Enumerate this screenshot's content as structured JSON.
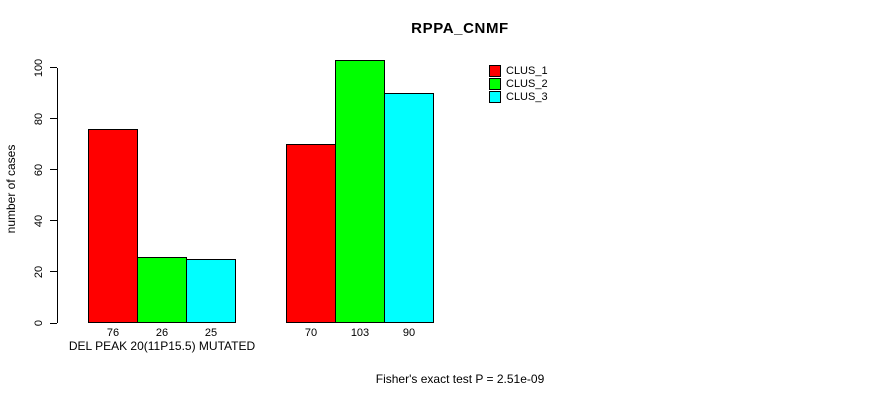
{
  "chart_data": {
    "type": "bar",
    "title": "RPPA_CNMF",
    "ylabel": "number of cases",
    "annotation": "Fisher's exact test P = 2.51e-09",
    "yticks": [
      0,
      20,
      40,
      60,
      80,
      100
    ],
    "ylim": [
      0,
      103
    ],
    "grid": false,
    "legend_position": "top-right",
    "groups": [
      {
        "label": "DEL PEAK 20(11P15.5) MUTATED"
      },
      {
        "label": ""
      }
    ],
    "series": [
      {
        "name": "CLUS_1",
        "color": "#ff0000",
        "values": [
          76,
          70
        ]
      },
      {
        "name": "CLUS_2",
        "color": "#00ff00",
        "values": [
          26,
          103
        ]
      },
      {
        "name": "CLUS_3",
        "color": "#00ffff",
        "values": [
          25,
          90
        ]
      }
    ],
    "bar_value_labels": [
      [
        76,
        26,
        25
      ],
      [
        70,
        103,
        90
      ]
    ]
  }
}
